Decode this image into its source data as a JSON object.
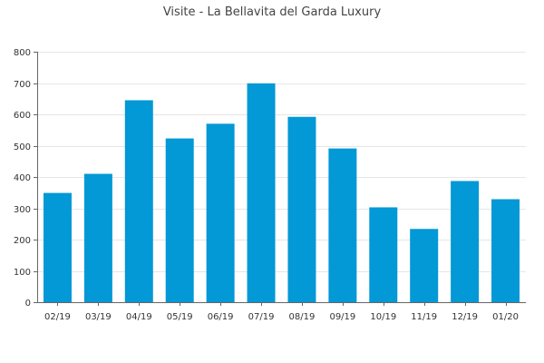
{
  "chart_data": {
    "type": "bar",
    "title": "Visite - La Bellavita del Garda Luxury",
    "xlabel": "",
    "ylabel": "",
    "categories": [
      "02/19",
      "03/19",
      "04/19",
      "05/19",
      "06/19",
      "07/19",
      "08/19",
      "09/19",
      "10/19",
      "11/19",
      "12/19",
      "01/20"
    ],
    "values": [
      349,
      410,
      645,
      523,
      570,
      699,
      592,
      491,
      303,
      234,
      387,
      329
    ],
    "ylim": [
      0,
      800
    ],
    "yticks": [
      0,
      100,
      200,
      300,
      400,
      500,
      600,
      700,
      800
    ],
    "grid": true,
    "legend": "none",
    "colors": {
      "bar": "#0398d6",
      "grid": "#e6e6e6",
      "axis": "#666666",
      "text": "#333333",
      "title": "#444444"
    }
  }
}
